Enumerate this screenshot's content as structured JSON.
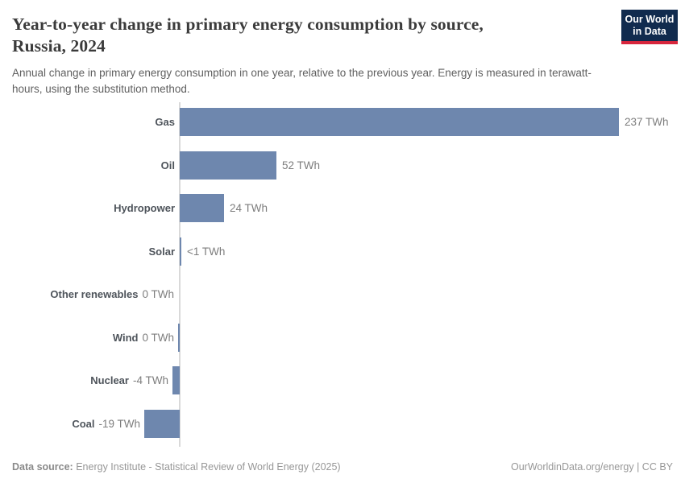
{
  "header": {
    "title_line1": "Year-to-year change in primary energy consumption by source,",
    "title_line2": "Russia, 2024",
    "subtitle": "Annual change in primary energy consumption in one year, relative to the previous year. Energy is measured in terawatt-hours, using the substitution method.",
    "logo": {
      "line1": "Our World",
      "line2": "in Data",
      "bg_color": "#112b4e",
      "stripe_color": "#d7263d"
    }
  },
  "chart_data": {
    "type": "bar",
    "orientation": "horizontal",
    "title": "Year-to-year change in primary energy consumption by source, Russia, 2024",
    "unit": "TWh",
    "categories": [
      "Gas",
      "Oil",
      "Hydropower",
      "Solar",
      "Other renewables",
      "Wind",
      "Nuclear",
      "Coal"
    ],
    "values": [
      237,
      52,
      24,
      0.7,
      0,
      -0.3,
      -4,
      -19
    ],
    "value_labels": [
      "237 TWh",
      "52 TWh",
      "24 TWh",
      "<1 TWh",
      "0 TWh",
      "0 TWh",
      "-4 TWh",
      "-19 TWh"
    ],
    "xlim": [
      -20,
      260
    ],
    "grid": false,
    "legend": false,
    "bar_color": "#6e87ae",
    "axis_color": "#d9d9d9"
  },
  "footer": {
    "datasource_label": "Data source:",
    "datasource_text": " Energy Institute - Statistical Review of World Energy (2025)",
    "rights": "OurWorldinData.org/energy | CC BY"
  }
}
